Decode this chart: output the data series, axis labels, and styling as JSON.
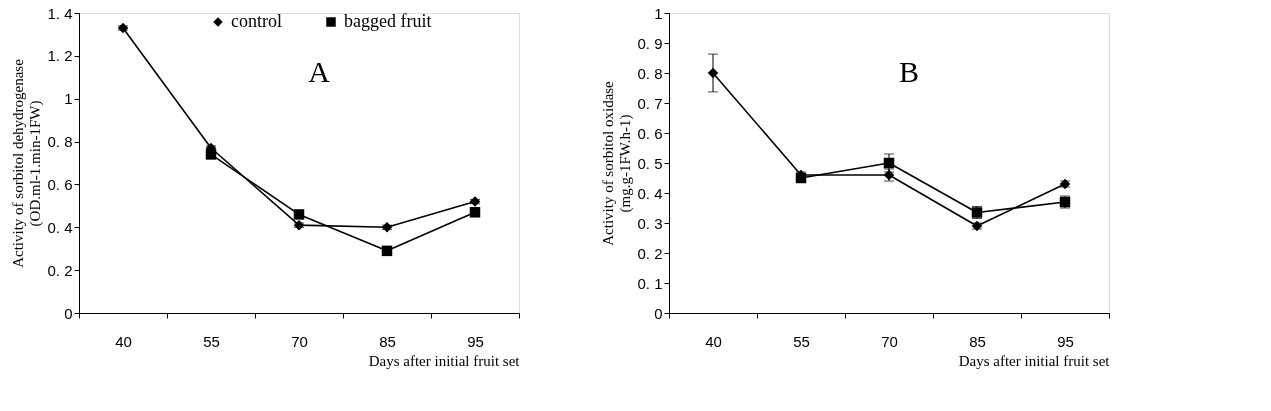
{
  "chart_data": [
    {
      "type": "line",
      "categories": [
        "40",
        "55",
        "70",
        "85",
        "95"
      ],
      "xlabel": "Days after initial fruit set",
      "ylabel": "Activity of sorbitol dehydrogenase\n(OD.ml-1.min-1FW)",
      "ylim": [
        0,
        1.4
      ],
      "yticks": [
        {
          "value": 0,
          "label": "0"
        },
        {
          "value": 0.2,
          "label": "0. 2"
        },
        {
          "value": 0.4,
          "label": "0. 4"
        },
        {
          "value": 0.6,
          "label": "0. 6"
        },
        {
          "value": 0.8,
          "label": "0. 8"
        },
        {
          "value": 1,
          "label": "1"
        },
        {
          "value": 1.2,
          "label": "1. 2"
        },
        {
          "value": 1.4,
          "label": "1. 4"
        }
      ],
      "annotations": [
        "A"
      ],
      "legend": "top",
      "grid": false,
      "line_style": "solid",
      "series": [
        {
          "name": "control",
          "color": "#000000",
          "marker": "diamond",
          "values": [
            1.33,
            0.77,
            0.41,
            0.4,
            0.52
          ],
          "errors": [
            0.01,
            0.01,
            0.01,
            0.01,
            0.01
          ]
        },
        {
          "name": "bagged fruit",
          "color": "#000000",
          "marker": "square",
          "values": [
            null,
            0.74,
            0.46,
            0.29,
            0.47
          ],
          "errors": [
            null,
            0.01,
            0.01,
            0.01,
            0.01
          ]
        }
      ]
    },
    {
      "type": "line",
      "categories": [
        "40",
        "55",
        "70",
        "85",
        "95"
      ],
      "xlabel": "Days after initial fruit set",
      "ylabel": "Activity of sorbitol oxidase\n(mg.g-1FW.h-1)",
      "ylim": [
        0,
        1
      ],
      "yticks": [
        {
          "value": 0,
          "label": "0"
        },
        {
          "value": 0.1,
          "label": "0. 1"
        },
        {
          "value": 0.2,
          "label": "0. 2"
        },
        {
          "value": 0.3,
          "label": "0. 3"
        },
        {
          "value": 0.4,
          "label": "0. 4"
        },
        {
          "value": 0.5,
          "label": "0. 5"
        },
        {
          "value": 0.6,
          "label": "0. 6"
        },
        {
          "value": 0.7,
          "label": "0. 7"
        },
        {
          "value": 0.8,
          "label": "0. 8"
        },
        {
          "value": 0.9,
          "label": "0. 9"
        },
        {
          "value": 1,
          "label": "1"
        }
      ],
      "annotations": [
        "B"
      ],
      "grid": false,
      "line_style": "solid",
      "series": [
        {
          "color": "#000000",
          "marker": "diamond",
          "values": [
            0.8,
            0.46,
            0.46,
            0.29,
            0.43
          ],
          "errors": [
            0.063,
            0.01,
            0.02,
            0.01,
            0.01
          ]
        },
        {
          "color": "#000000",
          "marker": "square",
          "values": [
            null,
            0.45,
            0.5,
            0.335,
            0.37
          ],
          "errors": [
            null,
            0.01,
            0.03,
            0.02,
            0.02
          ]
        }
      ]
    }
  ]
}
